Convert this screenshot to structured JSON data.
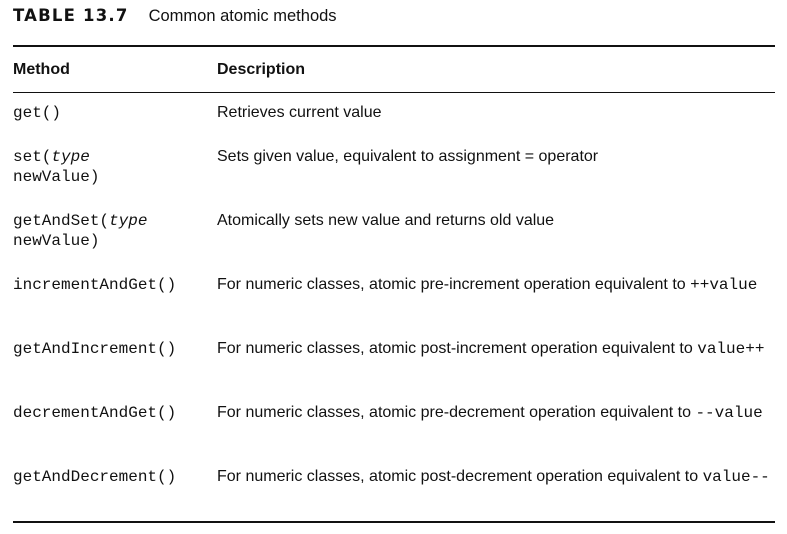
{
  "caption": {
    "label": "TABLE 13.7",
    "title": "Common atomic methods"
  },
  "headers": {
    "method": "Method",
    "description": "Description"
  },
  "rows": [
    {
      "method_name": "get()",
      "method_param": "",
      "method_rest": "",
      "description": "Retrieves current value",
      "code_suffix": ""
    },
    {
      "method_name": "set(",
      "method_param": "type",
      "method_rest": "\nnewValue)",
      "description": "Sets given value, equivalent to assignment = operator",
      "code_suffix": ""
    },
    {
      "method_name": "getAndSet(",
      "method_param": "type",
      "method_rest": "\nnewValue)",
      "description": "Atomically sets new value and returns old value",
      "code_suffix": ""
    },
    {
      "method_name": "incrementAndGet()",
      "method_param": "",
      "method_rest": "",
      "description": "For numeric classes, atomic pre-increment operation equivalent to ",
      "code_suffix": "++value"
    },
    {
      "method_name": "getAndIncrement()",
      "method_param": "",
      "method_rest": "",
      "description": "For numeric classes, atomic post-increment operation equivalent to ",
      "code_suffix": "value++"
    },
    {
      "method_name": "decrementAndGet()",
      "method_param": "",
      "method_rest": "",
      "description": "For numeric classes, atomic pre-decrement operation equivalent to ",
      "code_suffix": "--value"
    },
    {
      "method_name": "getAndDecrement()",
      "method_param": "",
      "method_rest": "",
      "description": "For numeric classes, atomic post-decrement operation equivalent to ",
      "code_suffix": "value--"
    }
  ]
}
